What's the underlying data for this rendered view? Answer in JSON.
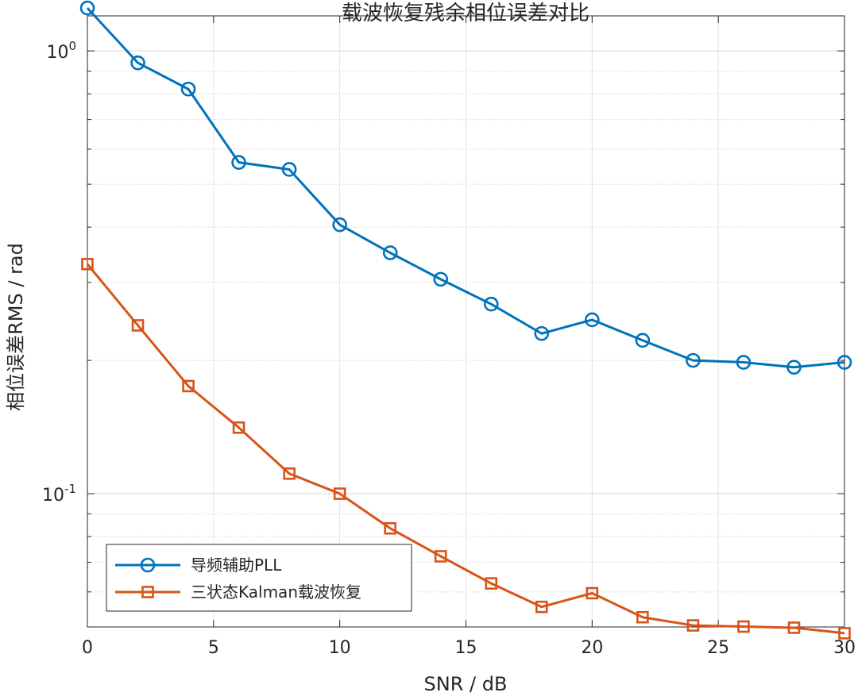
{
  "chart_data": {
    "type": "line",
    "title": "载波恢复残余相位误差对比",
    "xlabel": "SNR / dB",
    "ylabel": "相位误差RMS / rad",
    "yscale": "log",
    "xlim": [
      0,
      30
    ],
    "ylim": [
      0.05,
      1.2
    ],
    "xticks": [
      0,
      5,
      10,
      15,
      20,
      25,
      30
    ],
    "yticks": [
      {
        "base": "10",
        "exp": "-1",
        "value": 0.1
      },
      {
        "base": "10",
        "exp": "0",
        "value": 1
      }
    ],
    "grid": true,
    "legend_position": "bottom-left",
    "series": [
      {
        "name": "导频辅助PLL",
        "color": "#0072BD",
        "marker": "circle",
        "x": [
          0,
          2,
          4,
          6,
          8,
          10,
          12,
          14,
          16,
          18,
          20,
          22,
          24,
          26,
          28,
          30
        ],
        "values": [
          1.25,
          0.94,
          0.82,
          0.56,
          0.54,
          0.405,
          0.35,
          0.305,
          0.268,
          0.23,
          0.247,
          0.222,
          0.2,
          0.198,
          0.193,
          0.198
        ]
      },
      {
        "name": "三状态Kalman载波恢复",
        "color": "#D95319",
        "marker": "square",
        "x": [
          0,
          2,
          4,
          6,
          8,
          10,
          12,
          14,
          16,
          18,
          20,
          22,
          24,
          26,
          28,
          30
        ],
        "values": [
          0.33,
          0.24,
          0.175,
          0.141,
          0.111,
          0.1,
          0.0835,
          0.0722,
          0.0627,
          0.0555,
          0.0596,
          0.0526,
          0.0504,
          0.0501,
          0.0498,
          0.0484
        ]
      }
    ]
  }
}
